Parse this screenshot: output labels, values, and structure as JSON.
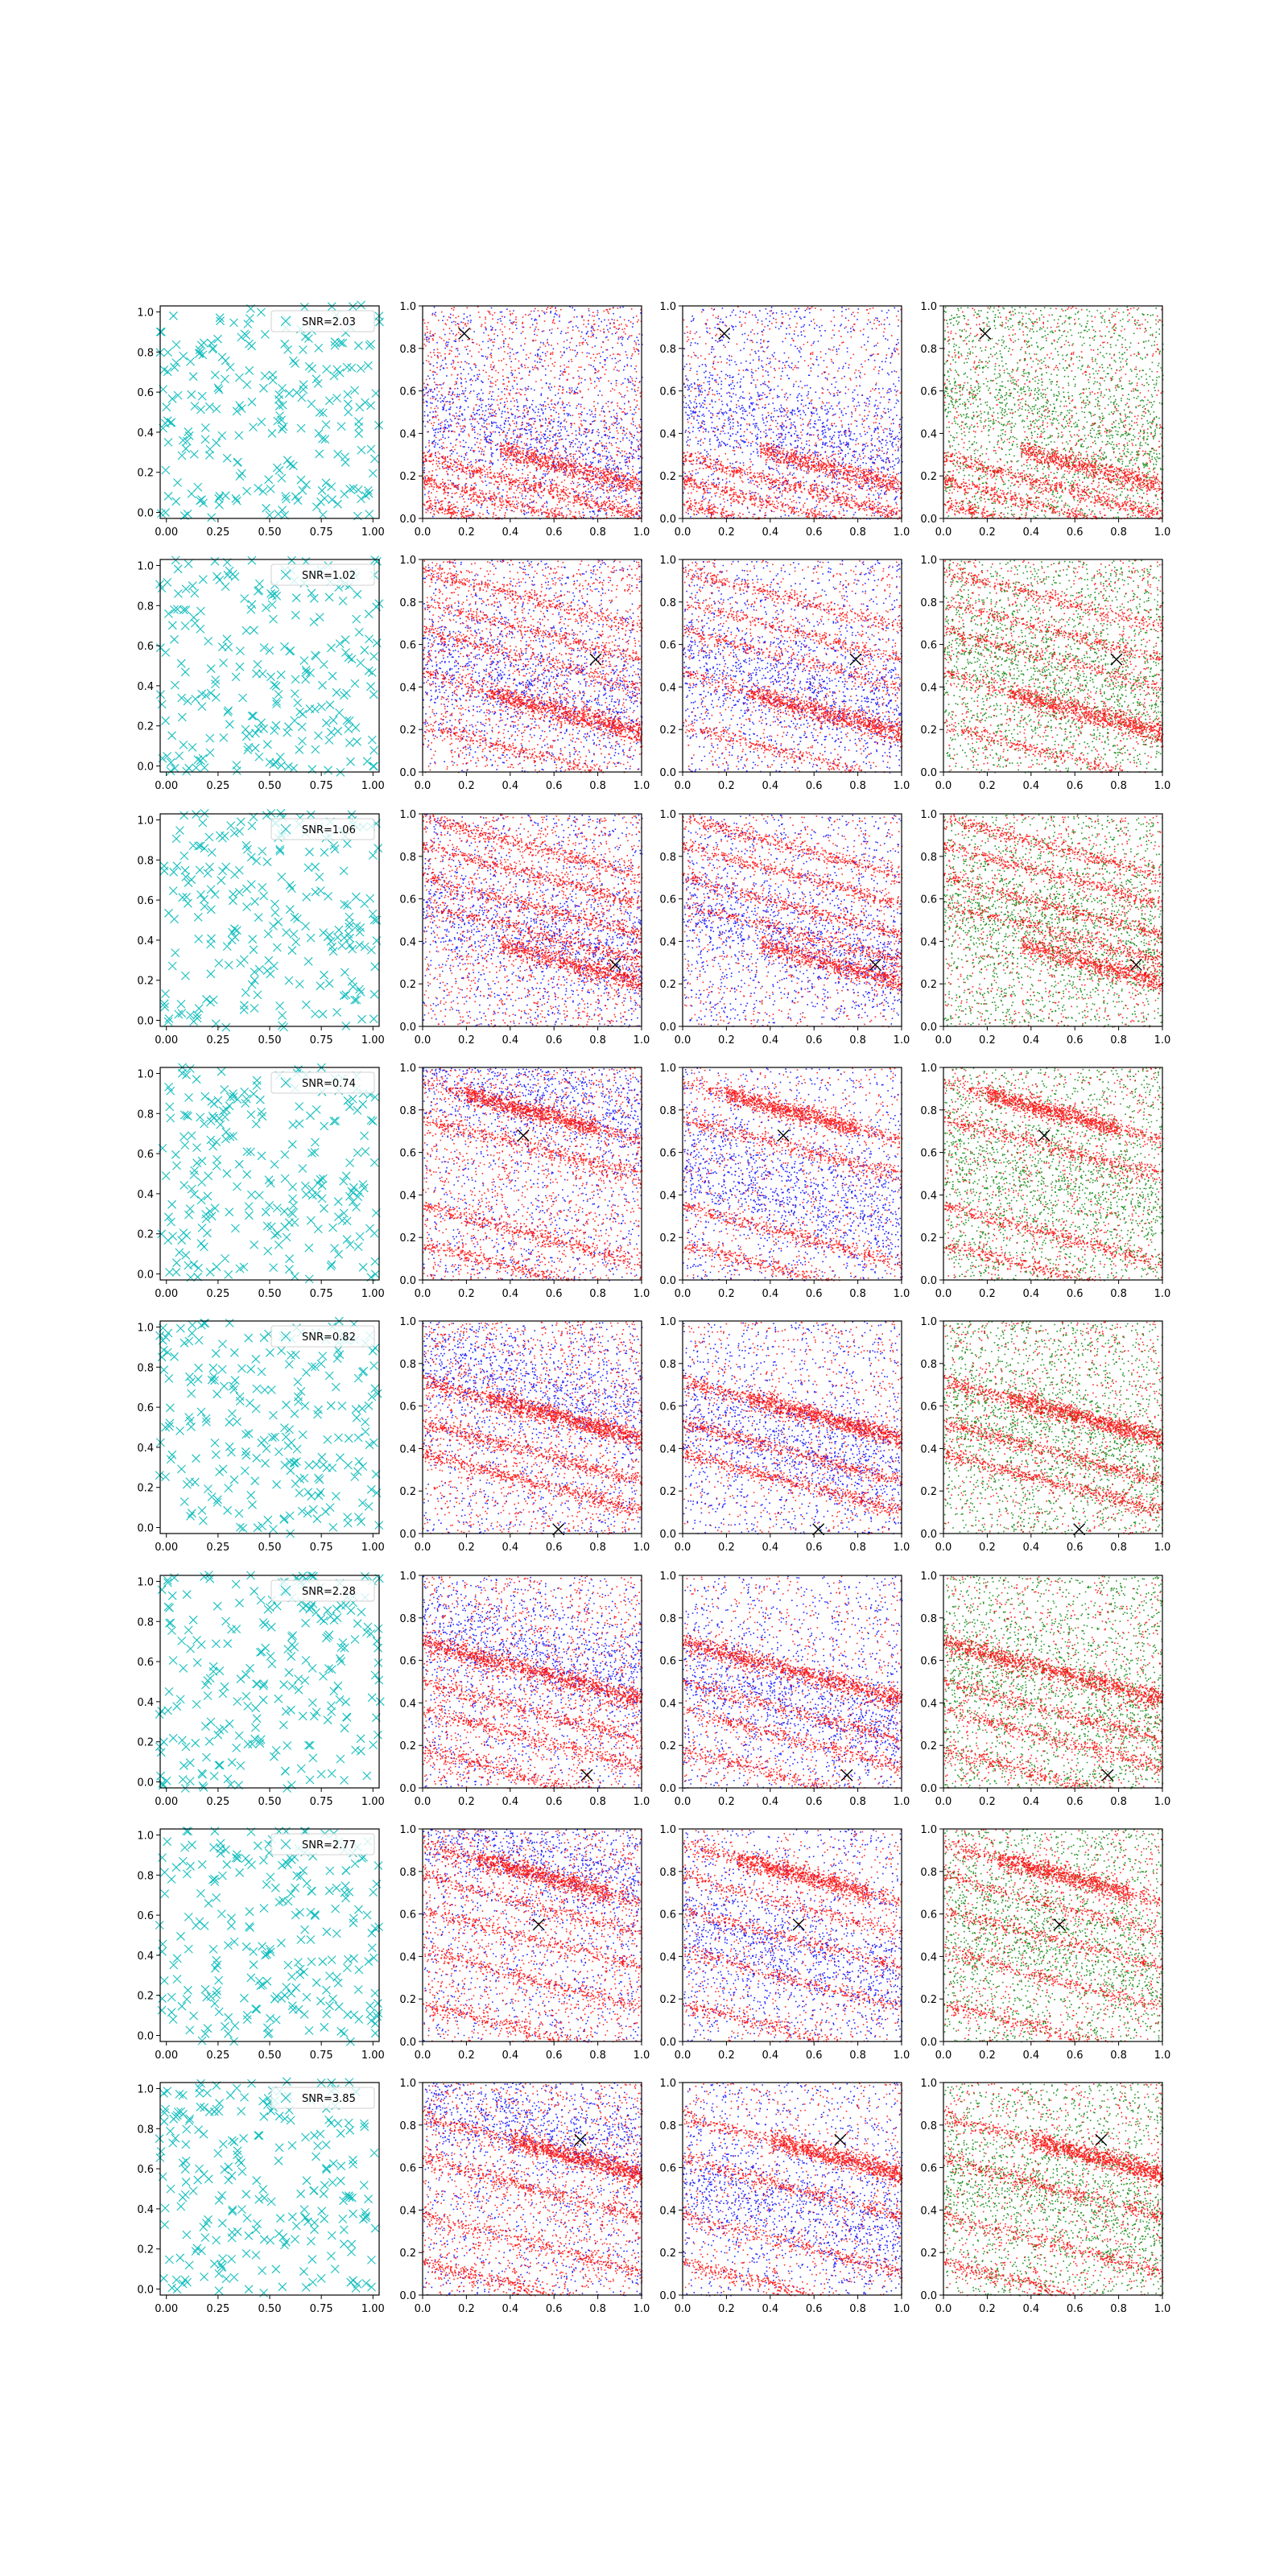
{
  "figure": {
    "rows": 8,
    "cols": 4,
    "colors": {
      "cyan_marker": "#17bfbf",
      "blue_points": "#0000ff",
      "red_points": "#ff0000",
      "green_points": "#008000",
      "black_marker": "#000000",
      "axes": "#000000"
    }
  },
  "axes_ticks": {
    "col0_x": [
      "0.00",
      "0.25",
      "0.50",
      "0.75",
      "1.00"
    ],
    "col0_x_values": [
      0,
      0.25,
      0.5,
      0.75,
      1.0
    ],
    "xy": [
      "0.0",
      "0.2",
      "0.4",
      "0.6",
      "0.8",
      "1.0"
    ],
    "xy_values": [
      0,
      0.2,
      0.4,
      0.6,
      0.8,
      1.0
    ]
  },
  "chart_data": [
    {
      "type": "scatter",
      "row": 1,
      "legend": "SNR=2.03",
      "marker": "x",
      "color": "cyan",
      "xlim": [
        0,
        1
      ],
      "ylim": [
        0,
        1
      ],
      "target_marker": [
        0.19,
        0.87
      ],
      "red_band_offsets": [
        0.29,
        0.18,
        0.07
      ],
      "dense_band_offset": 0.42,
      "dense_band_range": [
        0.35,
        1.0
      ],
      "legend_loc": "upper right"
    },
    {
      "type": "scatter",
      "row": 2,
      "legend": "SNR=1.02",
      "marker": "x",
      "color": "cyan",
      "xlim": [
        0,
        1
      ],
      "ylim": [
        0,
        1
      ],
      "target_marker": [
        0.79,
        0.53
      ],
      "red_band_offsets": [
        0.95,
        0.8,
        0.67,
        0.47,
        0.22
      ],
      "dense_band_offset": 0.45,
      "dense_band_range": [
        0.3,
        1.0
      ],
      "legend_loc": "upper right"
    },
    {
      "type": "scatter",
      "row": 3,
      "legend": "SNR=1.06",
      "marker": "x",
      "color": "cyan",
      "xlim": [
        0,
        1
      ],
      "ylim": [
        0,
        1
      ],
      "target_marker": [
        0.88,
        0.29
      ],
      "red_band_offsets": [
        0.98,
        0.85,
        0.7,
        0.58
      ],
      "dense_band_offset": 0.48,
      "dense_band_range": [
        0.35,
        1.0
      ],
      "legend_loc": "upper right"
    },
    {
      "type": "scatter",
      "row": 4,
      "legend": "SNR=0.74",
      "marker": "x",
      "color": "cyan",
      "xlim": [
        0,
        1
      ],
      "ylim": [
        0,
        1
      ],
      "target_marker": [
        0.46,
        0.68
      ],
      "red_band_offsets": [
        0.93,
        0.76,
        0.35,
        0.17
      ],
      "dense_band_offset": 0.93,
      "dense_band_range": [
        0.2,
        0.8
      ],
      "legend_loc": "upper right"
    },
    {
      "type": "scatter",
      "row": 5,
      "legend": "SNR=0.82",
      "marker": "x",
      "color": "cyan",
      "xlim": [
        0,
        1
      ],
      "ylim": [
        0,
        1
      ],
      "target_marker": [
        0.62,
        0.02
      ],
      "red_band_offsets": [
        0.72,
        0.52,
        0.38
      ],
      "dense_band_offset": 0.72,
      "dense_band_range": [
        0.3,
        1.0
      ],
      "legend_loc": "upper right"
    },
    {
      "type": "scatter",
      "row": 6,
      "legend": "SNR=2.28",
      "marker": "x",
      "color": "cyan",
      "xlim": [
        0,
        1
      ],
      "ylim": [
        0,
        1
      ],
      "target_marker": [
        0.75,
        0.06
      ],
      "red_band_offsets": [
        0.7,
        0.5,
        0.37,
        0.18
      ],
      "dense_band_offset": 0.68,
      "dense_band_range": [
        0.0,
        1.0
      ],
      "legend_loc": "upper right"
    },
    {
      "type": "scatter",
      "row": 7,
      "legend": "SNR=2.77",
      "marker": "x",
      "color": "cyan",
      "xlim": [
        0,
        1
      ],
      "ylim": [
        0,
        1
      ],
      "target_marker": [
        0.53,
        0.55
      ],
      "red_band_offsets": [
        0.93,
        0.78,
        0.62,
        0.43,
        0.18
      ],
      "dense_band_offset": 0.93,
      "dense_band_range": [
        0.25,
        0.85
      ],
      "legend_loc": "upper right"
    },
    {
      "type": "scatter",
      "row": 8,
      "legend": "SNR=3.85",
      "marker": "x",
      "color": "cyan",
      "xlim": [
        0,
        1
      ],
      "ylim": [
        0,
        1
      ],
      "target_marker": [
        0.72,
        0.73
      ],
      "red_band_offsets": [
        0.84,
        0.64,
        0.38,
        0.16
      ],
      "dense_band_offset": 0.84,
      "dense_band_range": [
        0.4,
        1.0
      ],
      "legend_loc": "upper right"
    }
  ]
}
